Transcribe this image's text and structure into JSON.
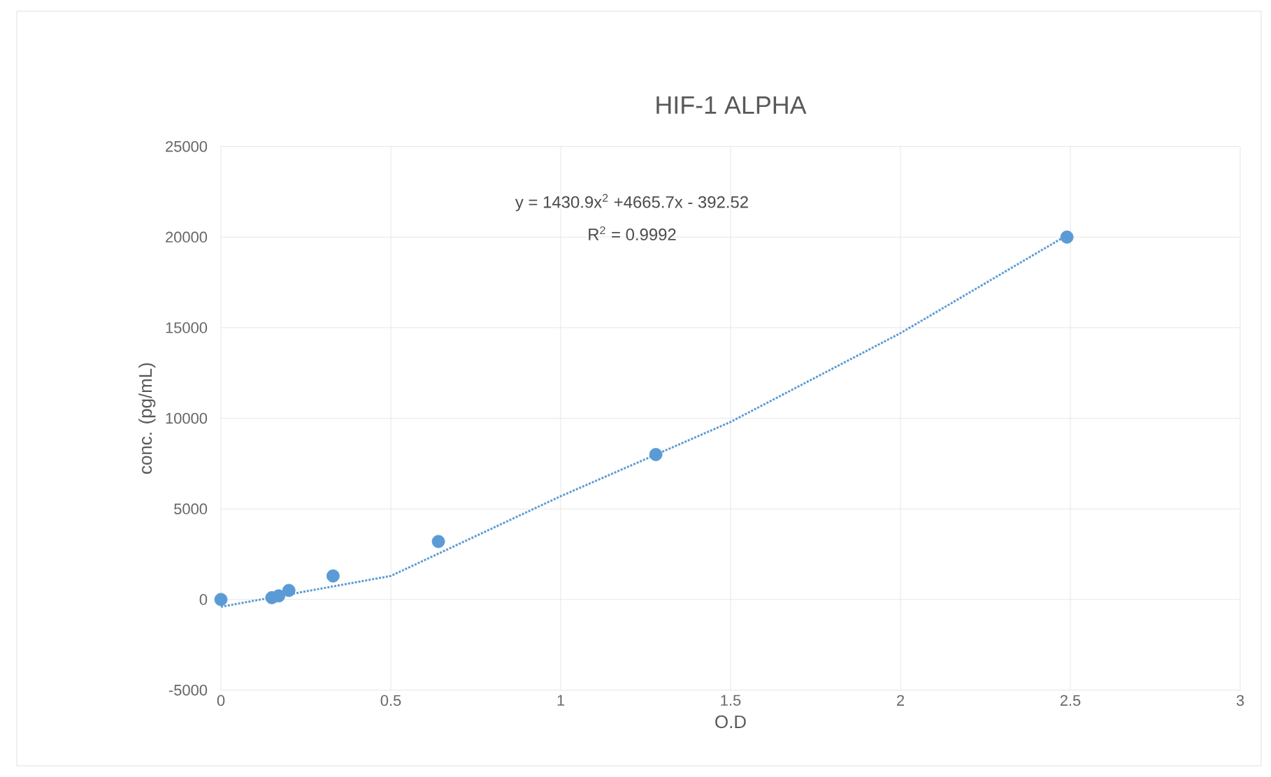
{
  "chart_data": {
    "type": "scatter",
    "title": "HIF-1 ALPHA",
    "xlabel": "O.D",
    "ylabel": "conc. (pg/mL)",
    "series": [
      {
        "color": "#5b9bd5",
        "marker": "circle",
        "x": [
          0,
          0.15,
          0.17,
          0.2,
          0.33,
          0.64,
          1.28,
          2.49
        ],
        "values": [
          0,
          100,
          200,
          500,
          1300,
          3200,
          8000,
          20000
        ]
      },
      {
        "type": "line",
        "color": "#5b9bd5",
        "marker": "none",
        "line_style": "dotted",
        "x": [
          0,
          0.5,
          1,
          1.5,
          2,
          2.49
        ],
        "values": [
          -400,
          1300,
          5700,
          9800,
          14700,
          20100
        ]
      }
    ],
    "xlim": [
      0,
      3
    ],
    "ylim": [
      -5000,
      25000
    ],
    "xticks": [
      0,
      0.5,
      1,
      1.5,
      2,
      2.5,
      3
    ],
    "yticks": [
      -5000,
      0,
      5000,
      10000,
      15000,
      20000,
      25000
    ],
    "grid": true,
    "annotations": [
      "y = 1430.9x$^{2}$ +4665.7x - 392.52",
      "R$^{2}$ = 0.9992"
    ]
  }
}
